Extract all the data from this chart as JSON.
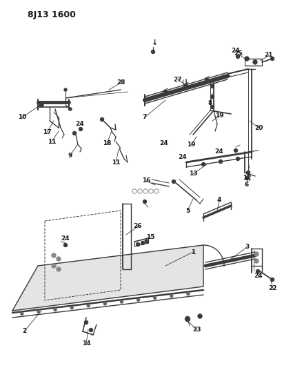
{
  "title": "8J13 1600",
  "bg_color": "#ffffff",
  "line_color": "#3a3a3a",
  "text_color": "#1a1a1a",
  "fig_width": 4.09,
  "fig_height": 5.33,
  "dpi": 100
}
